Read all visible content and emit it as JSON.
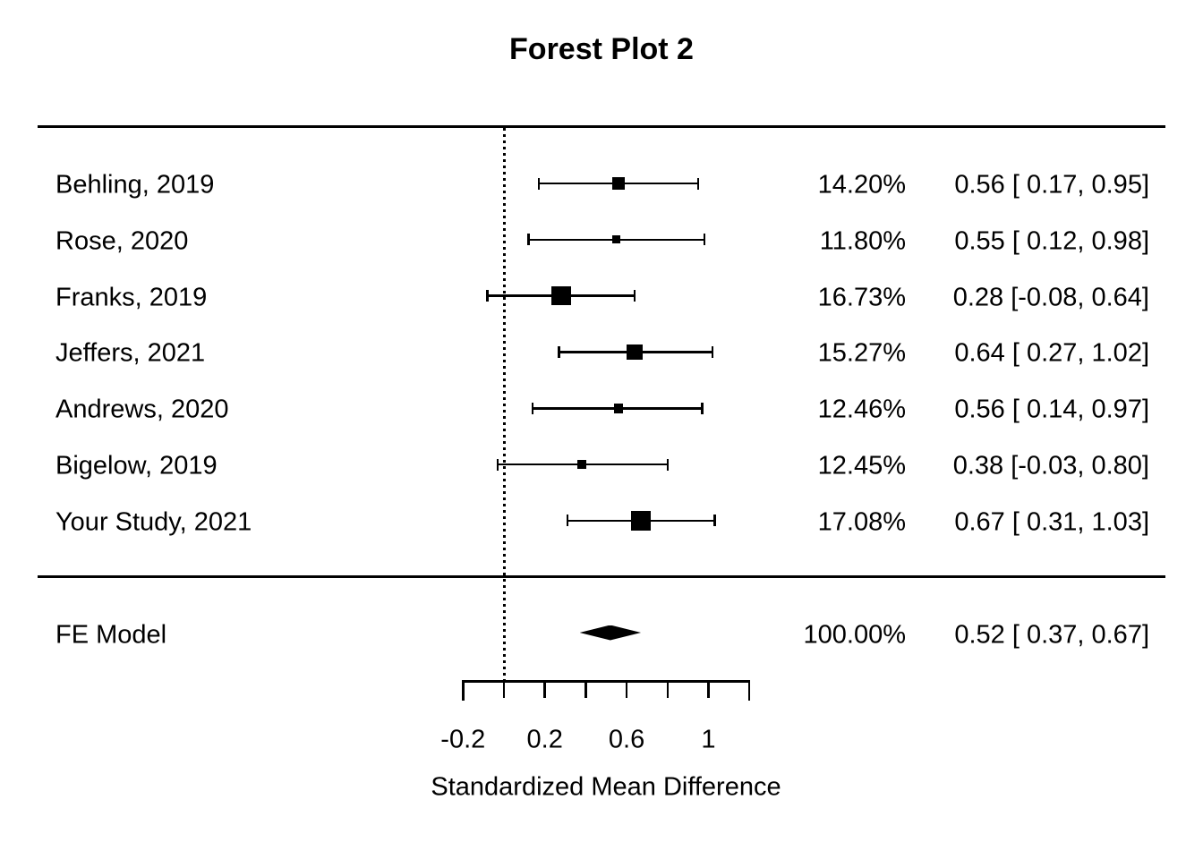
{
  "chart_data": {
    "type": "scatter",
    "subtype": "forest-plot",
    "title": "Forest Plot 2",
    "xlabel": "Standardized Mean Difference",
    "x_axis": {
      "min": -0.2,
      "max": 1.2,
      "tick_step": 0.2,
      "tick_values": [
        -0.2,
        0,
        0.2,
        0.4,
        0.6,
        0.8,
        1,
        1.2
      ],
      "labeled_ticks": [
        {
          "value": -0.2,
          "label": "-0.2"
        },
        {
          "value": 0.2,
          "label": "0.2"
        },
        {
          "value": 0.6,
          "label": "0.6"
        },
        {
          "value": 1,
          "label": "1"
        }
      ],
      "reference_line_value": 0,
      "reference_line_style": "dotted"
    },
    "columns": {
      "weight_column": "percent weight",
      "annotation_column": "estimate [95% CI]"
    },
    "studies": [
      {
        "label": "Behling, 2019",
        "weight": 14.2,
        "weight_label": "14.20%",
        "estimate": 0.56,
        "ci_lower": 0.17,
        "ci_upper": 0.95,
        "annotation": "0.56 [ 0.17, 0.95]"
      },
      {
        "label": "Rose, 2020",
        "weight": 11.8,
        "weight_label": "11.80%",
        "estimate": 0.55,
        "ci_lower": 0.12,
        "ci_upper": 0.98,
        "annotation": "0.55 [ 0.12, 0.98]"
      },
      {
        "label": "Franks, 2019",
        "weight": 16.73,
        "weight_label": "16.73%",
        "estimate": 0.28,
        "ci_lower": -0.08,
        "ci_upper": 0.64,
        "annotation": "0.28 [-0.08, 0.64]"
      },
      {
        "label": "Jeffers, 2021",
        "weight": 15.27,
        "weight_label": "15.27%",
        "estimate": 0.64,
        "ci_lower": 0.27,
        "ci_upper": 1.02,
        "annotation": "0.64 [ 0.27, 1.02]"
      },
      {
        "label": "Andrews, 2020",
        "weight": 12.46,
        "weight_label": "12.46%",
        "estimate": 0.56,
        "ci_lower": 0.14,
        "ci_upper": 0.97,
        "annotation": "0.56 [ 0.14, 0.97]"
      },
      {
        "label": "Bigelow, 2019",
        "weight": 12.45,
        "weight_label": "12.45%",
        "estimate": 0.38,
        "ci_lower": -0.03,
        "ci_upper": 0.8,
        "annotation": "0.38 [-0.03, 0.80]"
      },
      {
        "label": "Your Study, 2021",
        "weight": 17.08,
        "weight_label": "17.08%",
        "estimate": 0.67,
        "ci_lower": 0.31,
        "ci_upper": 1.03,
        "annotation": "0.67 [ 0.31, 1.03]"
      }
    ],
    "summary": {
      "label": "FE Model",
      "weight": 100.0,
      "weight_label": "100.00%",
      "estimate": 0.52,
      "ci_lower": 0.37,
      "ci_upper": 0.67,
      "annotation": "0.52 [ 0.37, 0.67]"
    },
    "colors": {
      "foreground": "#000000",
      "background": "#ffffff"
    },
    "legend": "none",
    "grid": "off"
  }
}
